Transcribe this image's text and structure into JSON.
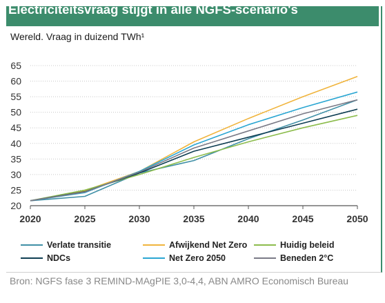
{
  "header": {
    "title": "Electriciteitsvraag stijgt in alle NGFS-scenario's",
    "subtitle": "Wereld. Vraag in duizend TWh¹",
    "banner_color": "#3c8c6c"
  },
  "footer": {
    "source": "Bron: NGFS fase 3 REMIND-MAgPIE 3,0-4,4, ABN AMRO Economisch Bureau"
  },
  "chart_data": {
    "type": "line",
    "title": "Electriciteitsvraag stijgt in alle NGFS-scenario's",
    "subtitle": "Wereld. Vraag in duizend TWh¹",
    "x": [
      2020,
      2025,
      2030,
      2035,
      2040,
      2045,
      2050
    ],
    "ylim": [
      20,
      65
    ],
    "yticks": [
      20,
      25,
      30,
      35,
      40,
      45,
      50,
      55,
      60,
      65
    ],
    "xticks": [
      2020,
      2025,
      2030,
      2035,
      2040,
      2045,
      2050
    ],
    "grid": "horizontal",
    "legend_placement": "bottom",
    "series": [
      {
        "name": "Verlate transitie",
        "color": "#3f8fa6",
        "values": [
          21.6,
          23.0,
          30.5,
          34.5,
          41.5,
          47.5,
          54.0
        ]
      },
      {
        "name": "Afwijkend Net Zero",
        "color": "#f0b43c",
        "values": [
          21.6,
          24.8,
          31.0,
          40.5,
          48.0,
          55.0,
          61.5
        ]
      },
      {
        "name": "Huidig beleid",
        "color": "#8cbc4c",
        "values": [
          21.6,
          25.0,
          30.0,
          35.5,
          40.5,
          45.0,
          49.0
        ]
      },
      {
        "name": "NDCs",
        "color": "#0e3d52",
        "values": [
          21.6,
          24.5,
          30.5,
          37.5,
          42.0,
          46.5,
          51.0
        ]
      },
      {
        "name": "Net Zero 2050",
        "color": "#2aa6d2",
        "values": [
          21.6,
          24.2,
          31.0,
          39.5,
          46.0,
          51.5,
          56.5
        ]
      },
      {
        "name": "Beneden 2°C",
        "color": "#7a7a86",
        "values": [
          21.6,
          24.4,
          30.8,
          38.5,
          44.0,
          49.5,
          54.0
        ]
      }
    ]
  }
}
